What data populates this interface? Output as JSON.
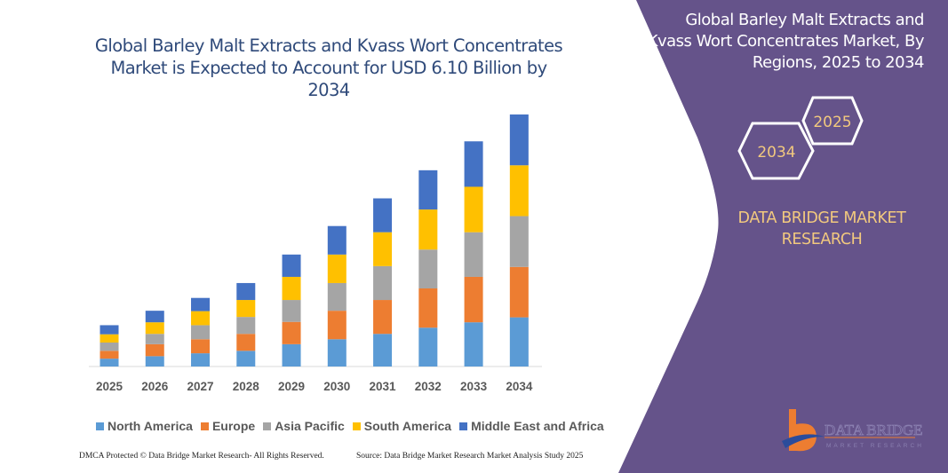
{
  "chart_data": {
    "type": "bar",
    "stacked": true,
    "title": "Global Barley Malt Extracts and Kvass Wort Concentrates Market is Expected to Account for USD 6.10 Billion by 2034",
    "xlabel": "",
    "ylabel": "",
    "ylim": [
      0,
      6.1
    ],
    "grid": false,
    "legend_position": "bottom",
    "categories": [
      "2025",
      "2026",
      "2027",
      "2028",
      "2029",
      "2030",
      "2031",
      "2032",
      "2033",
      "2034"
    ],
    "series": [
      {
        "name": "North America",
        "color": "#5B9BD5",
        "values": [
          0.19,
          0.25,
          0.32,
          0.38,
          0.54,
          0.66,
          0.79,
          0.94,
          1.07,
          1.19
        ]
      },
      {
        "name": "Europe",
        "color": "#ED7D31",
        "values": [
          0.19,
          0.29,
          0.34,
          0.41,
          0.54,
          0.69,
          0.82,
          0.95,
          1.1,
          1.22
        ]
      },
      {
        "name": "Asia Pacific",
        "color": "#A5A5A5",
        "values": [
          0.2,
          0.25,
          0.34,
          0.41,
          0.53,
          0.67,
          0.82,
          0.94,
          1.08,
          1.23
        ]
      },
      {
        "name": "South America",
        "color": "#FFC000",
        "values": [
          0.2,
          0.28,
          0.34,
          0.41,
          0.56,
          0.69,
          0.82,
          0.97,
          1.1,
          1.23
        ]
      },
      {
        "name": "Middle East and Africa",
        "color": "#4472C4",
        "values": [
          0.22,
          0.28,
          0.32,
          0.41,
          0.54,
          0.69,
          0.82,
          0.95,
          1.1,
          1.23
        ]
      }
    ]
  },
  "side_panel": {
    "title": [
      "Global Barley Malt Extracts and",
      "Kvass Wort Concentrates Market, By",
      "Regions, 2025 to 2034"
    ],
    "hex_start": "2025",
    "hex_end": "2034",
    "brand": [
      "DATA BRIDGE MARKET",
      "RESEARCH"
    ],
    "logo_text": "DATA BRIDGE",
    "logo_subtext": "MARKET RESEARCH",
    "panel_color": "#65538A",
    "accent_color": "#F2C97E"
  },
  "footer": {
    "left": "DMCA Protected © Data Bridge Market Research-  All Rights Reserved.",
    "right": "Source: Data Bridge Market Research  Market Analysis Study 2025"
  }
}
